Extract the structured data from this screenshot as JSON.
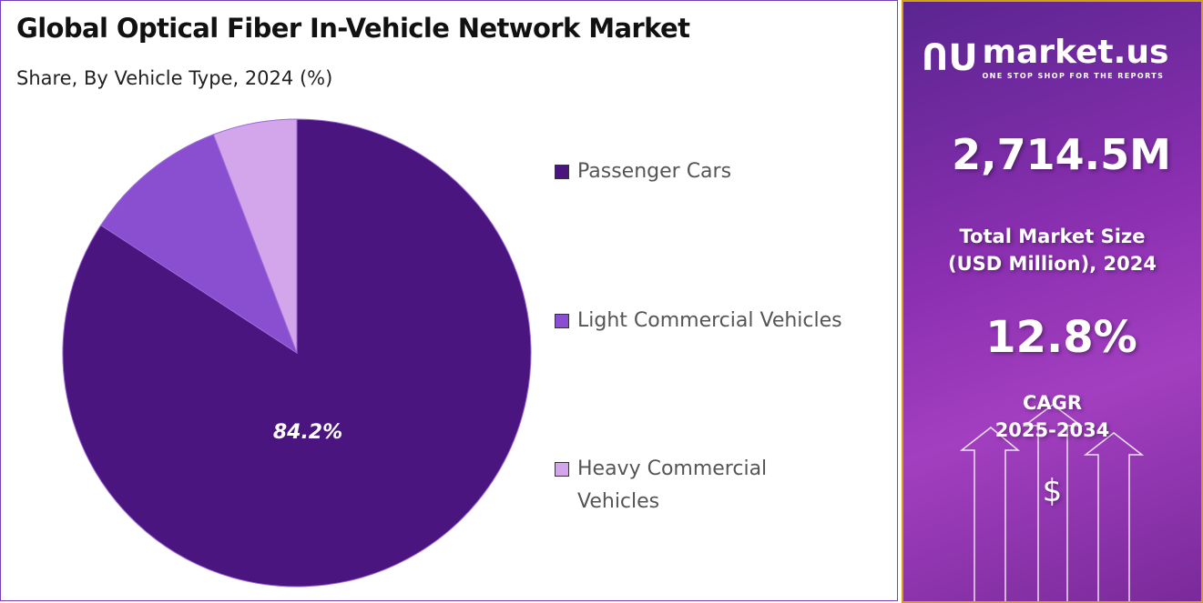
{
  "header": {
    "title": "Global Optical Fiber In-Vehicle Network Market",
    "subtitle": "Share, By Vehicle Type, 2024 (%)"
  },
  "chart_data": {
    "type": "pie",
    "title": "Global Optical Fiber In-Vehicle Network Market",
    "subtitle": "Share, By Vehicle Type, 2024 (%)",
    "categories": [
      "Passenger Cars",
      "Light Commercial Vehicles",
      "Heavy Commercial Vehicles"
    ],
    "values": [
      84.2,
      10.0,
      5.8
    ],
    "colors": [
      "#4b1580",
      "#8a4fd0",
      "#d3a6ec"
    ],
    "data_labels": [
      "84.2%",
      "",
      ""
    ],
    "legend_position": "right"
  },
  "sidebar": {
    "logo_text": "market.us",
    "logo_tagline": "ONE STOP SHOP FOR THE REPORTS",
    "market_size": "2,714.5M",
    "market_size_label_1": "Total Market Size",
    "market_size_label_2": "(USD Million), 2024",
    "cagr": "12.8%",
    "cagr_label_1": "CAGR",
    "cagr_label_2": "2025-2034",
    "dollar_symbol": "$"
  }
}
